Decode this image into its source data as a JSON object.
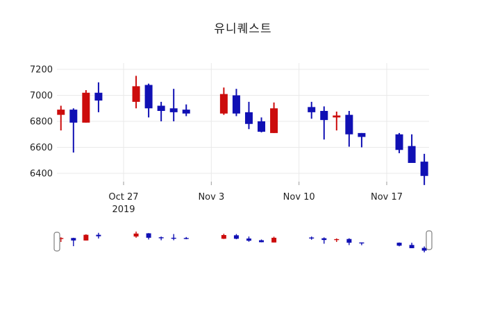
{
  "header": {
    "title": "유니퀘스트"
  },
  "colors": {
    "up": "#CC0C0C",
    "down": "#1010B4",
    "grid": "#E9E9E9",
    "tick_mark": "#9B9B9B",
    "axis_text": "#1F1F1F",
    "background": "#FFFFFF",
    "handle_fill": "#FFFFFF",
    "handle_border": "#7F7F7F"
  },
  "chart_data": {
    "type": "candlestick",
    "title": "유니퀘스트",
    "grid": true,
    "rangeslider": true,
    "y_ticks": [
      6400,
      6600,
      6800,
      7000,
      7200
    ],
    "ylim": [
      6340,
      7250
    ],
    "x_ticks": [
      {
        "label": "Oct 27",
        "sublabel": "2019",
        "date": "2019-10-27"
      },
      {
        "label": "Nov 3",
        "sublabel": "",
        "date": "2019-11-03"
      },
      {
        "label": "Nov 10",
        "sublabel": "",
        "date": "2019-11-10"
      },
      {
        "label": "Nov 17",
        "sublabel": "",
        "date": "2019-11-17"
      }
    ],
    "series": [
      {
        "date": "2019-10-22",
        "open": 6850,
        "high": 6920,
        "low": 6730,
        "close": 6890
      },
      {
        "date": "2019-10-23",
        "open": 6890,
        "high": 6900,
        "low": 6560,
        "close": 6790
      },
      {
        "date": "2019-10-24",
        "open": 6790,
        "high": 7040,
        "low": 6790,
        "close": 7020
      },
      {
        "date": "2019-10-25",
        "open": 7020,
        "high": 7100,
        "low": 6870,
        "close": 6960
      },
      {
        "date": "2019-10-28",
        "open": 6950,
        "high": 7150,
        "low": 6900,
        "close": 7070
      },
      {
        "date": "2019-10-29",
        "open": 7080,
        "high": 7090,
        "low": 6830,
        "close": 6900
      },
      {
        "date": "2019-10-30",
        "open": 6920,
        "high": 6950,
        "low": 6800,
        "close": 6880
      },
      {
        "date": "2019-10-31",
        "open": 6900,
        "high": 7050,
        "low": 6800,
        "close": 6870
      },
      {
        "date": "2019-11-01",
        "open": 6890,
        "high": 6930,
        "low": 6840,
        "close": 6860
      },
      {
        "date": "2019-11-04",
        "open": 6860,
        "high": 7060,
        "low": 6850,
        "close": 7010
      },
      {
        "date": "2019-11-05",
        "open": 7000,
        "high": 7050,
        "low": 6840,
        "close": 6860
      },
      {
        "date": "2019-11-06",
        "open": 6870,
        "high": 6950,
        "low": 6740,
        "close": 6780
      },
      {
        "date": "2019-11-07",
        "open": 6800,
        "high": 6830,
        "low": 6715,
        "close": 6720
      },
      {
        "date": "2019-11-08",
        "open": 6710,
        "high": 6945,
        "low": 6710,
        "close": 6900
      },
      {
        "date": "2019-11-11",
        "open": 6910,
        "high": 6950,
        "low": 6820,
        "close": 6870
      },
      {
        "date": "2019-11-12",
        "open": 6880,
        "high": 6915,
        "low": 6660,
        "close": 6810
      },
      {
        "date": "2019-11-13",
        "open": 6830,
        "high": 6875,
        "low": 6730,
        "close": 6845
      },
      {
        "date": "2019-11-14",
        "open": 6850,
        "high": 6880,
        "low": 6605,
        "close": 6700
      },
      {
        "date": "2019-11-15",
        "open": 6710,
        "high": 6710,
        "low": 6600,
        "close": 6680
      },
      {
        "date": "2019-11-18",
        "open": 6700,
        "high": 6710,
        "low": 6555,
        "close": 6580
      },
      {
        "date": "2019-11-19",
        "open": 6610,
        "high": 6700,
        "low": 6480,
        "close": 6480
      },
      {
        "date": "2019-11-20",
        "open": 6490,
        "high": 6550,
        "low": 6310,
        "close": 6380
      }
    ]
  }
}
